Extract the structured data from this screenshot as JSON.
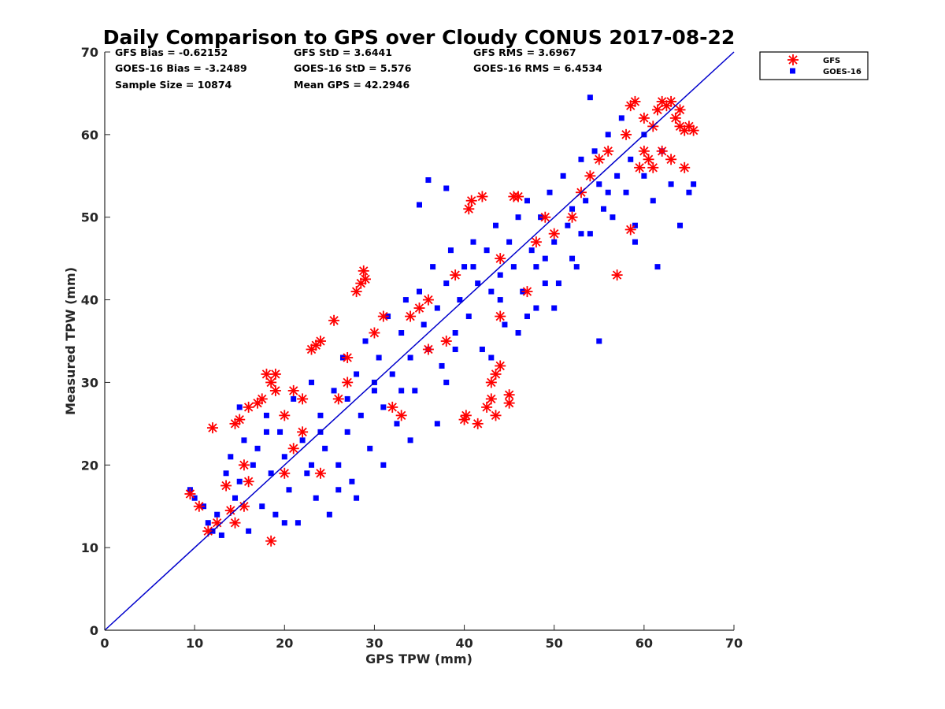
{
  "chart_data": {
    "type": "scatter",
    "title": "Daily Comparison to GPS over Cloudy CONUS 2017-08-22",
    "xlabel": "GPS TPW (mm)",
    "ylabel": "Measured TPW (mm)",
    "xlim": [
      0,
      70
    ],
    "ylim": [
      0,
      70
    ],
    "xticks": [
      "0",
      "10",
      "20",
      "30",
      "40",
      "50",
      "60",
      "70"
    ],
    "yticks": [
      "0",
      "10",
      "20",
      "30",
      "40",
      "50",
      "60",
      "70"
    ],
    "grid": false,
    "legend_position": "outside-top-right",
    "reference_line": {
      "type": "one-to-one",
      "from": [
        0,
        0
      ],
      "to": [
        70,
        70
      ],
      "color": "#0000cc"
    },
    "stats": [
      [
        "GFS Bias = -0.62152",
        "GFS StD = 3.6441",
        "GFS RMS = 3.6967"
      ],
      [
        "GOES-16 Bias = -3.2489",
        "GOES-16 StD = 5.576",
        "GOES-16 RMS = 6.4534"
      ],
      [
        "Sample Size = 10874",
        "Mean GPS = 42.2946",
        ""
      ]
    ],
    "series": [
      {
        "name": "GFS",
        "marker": "asterisk",
        "color": "#ff0000",
        "points": [
          [
            9.5,
            16.5
          ],
          [
            10.5,
            15
          ],
          [
            11.5,
            12
          ],
          [
            12,
            24.5
          ],
          [
            12.5,
            13
          ],
          [
            13.5,
            17.5
          ],
          [
            14.5,
            13
          ],
          [
            14.5,
            25
          ],
          [
            15,
            25.5
          ],
          [
            15.5,
            20
          ],
          [
            16,
            27
          ],
          [
            17,
            27.5
          ],
          [
            17.5,
            28
          ],
          [
            18,
            31
          ],
          [
            18.5,
            10.8
          ],
          [
            18.5,
            30
          ],
          [
            19,
            31
          ],
          [
            19,
            29
          ],
          [
            20,
            26
          ],
          [
            21,
            22
          ],
          [
            22,
            24
          ],
          [
            23,
            34
          ],
          [
            23.5,
            34.5
          ],
          [
            24,
            35
          ],
          [
            24,
            19
          ],
          [
            25.5,
            37.5
          ],
          [
            26,
            28
          ],
          [
            27,
            30
          ],
          [
            28,
            41
          ],
          [
            28.5,
            42
          ],
          [
            28.8,
            43.5
          ],
          [
            29,
            42.5
          ],
          [
            30,
            36
          ],
          [
            32,
            27
          ],
          [
            33,
            26
          ],
          [
            34,
            38
          ],
          [
            35,
            39
          ],
          [
            36,
            34
          ],
          [
            38,
            35
          ],
          [
            39,
            43
          ],
          [
            40,
            25.5
          ],
          [
            40.2,
            26
          ],
          [
            40.5,
            51
          ],
          [
            40.8,
            52
          ],
          [
            41.5,
            25
          ],
          [
            42,
            52.5
          ],
          [
            42.5,
            27
          ],
          [
            43,
            30
          ],
          [
            43.5,
            26
          ],
          [
            43.5,
            31
          ],
          [
            43,
            28
          ],
          [
            44,
            32
          ],
          [
            45,
            28.5
          ],
          [
            45,
            27.5
          ],
          [
            45.5,
            52.5
          ],
          [
            46,
            52.5
          ],
          [
            44,
            45
          ],
          [
            48,
            47
          ],
          [
            50,
            48
          ],
          [
            52,
            50
          ],
          [
            53,
            53
          ],
          [
            54,
            55
          ],
          [
            55,
            57
          ],
          [
            56,
            58
          ],
          [
            57,
            43
          ],
          [
            58.5,
            48.5
          ],
          [
            58,
            60
          ],
          [
            58.5,
            63.5
          ],
          [
            59,
            64
          ],
          [
            59.5,
            56
          ],
          [
            60,
            58
          ],
          [
            60.5,
            57
          ],
          [
            61,
            56
          ],
          [
            61.5,
            63
          ],
          [
            62,
            64
          ],
          [
            62.5,
            63.5
          ],
          [
            63,
            64
          ],
          [
            63.5,
            62
          ],
          [
            64,
            63
          ],
          [
            64.5,
            56
          ],
          [
            64,
            61
          ],
          [
            64.5,
            60.5
          ],
          [
            65,
            61
          ],
          [
            65.5,
            60.5
          ],
          [
            63,
            57
          ],
          [
            62,
            58
          ],
          [
            61,
            61
          ],
          [
            60,
            62
          ],
          [
            31,
            38
          ],
          [
            36,
            40
          ],
          [
            44,
            38
          ],
          [
            47,
            41
          ],
          [
            49,
            50
          ],
          [
            27,
            33
          ],
          [
            22,
            28
          ],
          [
            20,
            19
          ],
          [
            14,
            14.5
          ],
          [
            15.5,
            15
          ],
          [
            16,
            18
          ],
          [
            21,
            29
          ]
        ]
      },
      {
        "name": "GOES-16",
        "marker": "square",
        "color": "#0000ff",
        "points": [
          [
            9.5,
            17
          ],
          [
            10,
            16
          ],
          [
            11,
            15
          ],
          [
            11.5,
            13
          ],
          [
            12,
            12
          ],
          [
            12.5,
            14
          ],
          [
            13,
            11.5
          ],
          [
            13.5,
            19
          ],
          [
            14,
            21
          ],
          [
            14.5,
            16
          ],
          [
            15,
            18
          ],
          [
            15.5,
            23
          ],
          [
            16,
            12
          ],
          [
            16.5,
            20
          ],
          [
            17,
            22
          ],
          [
            17.5,
            15
          ],
          [
            18,
            26
          ],
          [
            18.5,
            19
          ],
          [
            19,
            14
          ],
          [
            19.5,
            24
          ],
          [
            20,
            21
          ],
          [
            20.5,
            17
          ],
          [
            21,
            28
          ],
          [
            21.5,
            13
          ],
          [
            22,
            23
          ],
          [
            22.5,
            19
          ],
          [
            23,
            30
          ],
          [
            23.5,
            16
          ],
          [
            24,
            26
          ],
          [
            24.5,
            22
          ],
          [
            25,
            14
          ],
          [
            25.5,
            29
          ],
          [
            26,
            20
          ],
          [
            26.5,
            33
          ],
          [
            27,
            24
          ],
          [
            27.5,
            18
          ],
          [
            28,
            31
          ],
          [
            28.5,
            26
          ],
          [
            29,
            35
          ],
          [
            29.5,
            22
          ],
          [
            30,
            29
          ],
          [
            30.5,
            33
          ],
          [
            31,
            27
          ],
          [
            31.5,
            38
          ],
          [
            32,
            31
          ],
          [
            32.5,
            25
          ],
          [
            33,
            36
          ],
          [
            33.5,
            40
          ],
          [
            34,
            33
          ],
          [
            34.5,
            29
          ],
          [
            35,
            41
          ],
          [
            35.5,
            37
          ],
          [
            36,
            34
          ],
          [
            36.5,
            44
          ],
          [
            37,
            39
          ],
          [
            37.5,
            32
          ],
          [
            38,
            42
          ],
          [
            38.5,
            46
          ],
          [
            39,
            36
          ],
          [
            39.5,
            40
          ],
          [
            40,
            44
          ],
          [
            40.5,
            38
          ],
          [
            41,
            47
          ],
          [
            41.5,
            42
          ],
          [
            42,
            34
          ],
          [
            42.5,
            46
          ],
          [
            43,
            41
          ],
          [
            43.5,
            49
          ],
          [
            44,
            43
          ],
          [
            44.5,
            37
          ],
          [
            45,
            47
          ],
          [
            45.5,
            44
          ],
          [
            46,
            50
          ],
          [
            46.5,
            41
          ],
          [
            47,
            52
          ],
          [
            47.5,
            46
          ],
          [
            48,
            39
          ],
          [
            48.5,
            50
          ],
          [
            49,
            45
          ],
          [
            49.5,
            53
          ],
          [
            50,
            47
          ],
          [
            50.5,
            42
          ],
          [
            51,
            55
          ],
          [
            51.5,
            49
          ],
          [
            52,
            51
          ],
          [
            52.5,
            44
          ],
          [
            53,
            57
          ],
          [
            53.5,
            52
          ],
          [
            54,
            48
          ],
          [
            54.5,
            58
          ],
          [
            55,
            54
          ],
          [
            55.5,
            51
          ],
          [
            56,
            60
          ],
          [
            56.5,
            50
          ],
          [
            57,
            55
          ],
          [
            57.5,
            62
          ],
          [
            58,
            53
          ],
          [
            58.5,
            57
          ],
          [
            59,
            49
          ],
          [
            60,
            55
          ],
          [
            61,
            52
          ],
          [
            62,
            58
          ],
          [
            63,
            54
          ],
          [
            64,
            49
          ],
          [
            65,
            53
          ],
          [
            65.5,
            54
          ],
          [
            54,
            64.5
          ],
          [
            38,
            53.5
          ],
          [
            36,
            54.5
          ],
          [
            35,
            51.5
          ],
          [
            30,
            30
          ],
          [
            41,
            44
          ],
          [
            46,
            36
          ],
          [
            49,
            42
          ],
          [
            52,
            45
          ],
          [
            38,
            30
          ],
          [
            26,
            17
          ],
          [
            15,
            27
          ],
          [
            18,
            24
          ],
          [
            20,
            13
          ],
          [
            23,
            20
          ],
          [
            28,
            16
          ],
          [
            31,
            20
          ],
          [
            34,
            23
          ],
          [
            37,
            25
          ],
          [
            43,
            33
          ],
          [
            47,
            38
          ],
          [
            50,
            39
          ],
          [
            55,
            35
          ],
          [
            59,
            47
          ],
          [
            61.5,
            44
          ],
          [
            24,
            24
          ],
          [
            27,
            28
          ],
          [
            33,
            29
          ],
          [
            39,
            34
          ],
          [
            44,
            40
          ],
          [
            48,
            44
          ],
          [
            53,
            48
          ],
          [
            56,
            53
          ],
          [
            60,
            60
          ]
        ]
      }
    ]
  }
}
